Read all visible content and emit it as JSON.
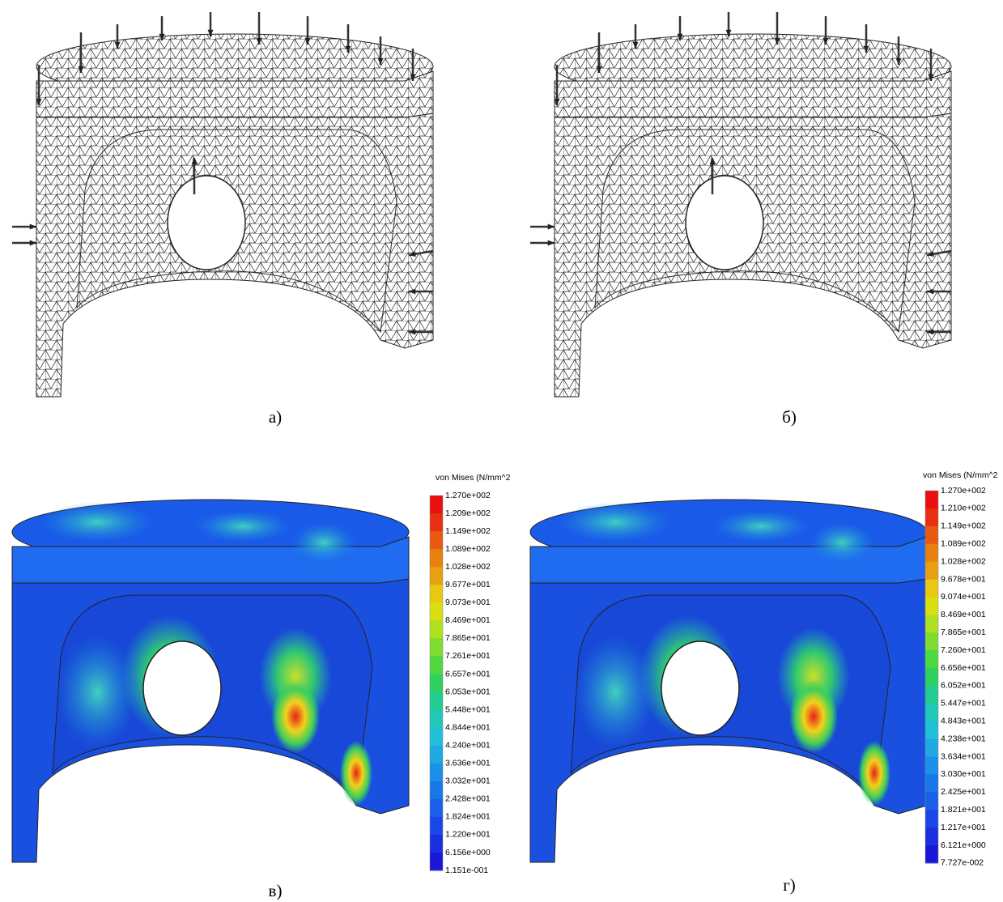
{
  "panels": [
    {
      "caption": "а)"
    },
    {
      "caption": "б)"
    },
    {
      "caption": "в)",
      "legend": {
        "title": "von Mises (N/mm^2",
        "labels": [
          "1.270e+002",
          "1.209e+002",
          "1.149e+002",
          "1.089e+002",
          "1.028e+002",
          "9.677e+001",
          "9.073e+001",
          "8.469e+001",
          "7.865e+001",
          "7.261e+001",
          "6.657e+001",
          "6.053e+001",
          "5.448e+001",
          "4.844e+001",
          "4.240e+001",
          "3.636e+001",
          "3.032e+001",
          "2.428e+001",
          "1.824e+001",
          "1.220e+001",
          "6.156e+000",
          "1.151e-001"
        ]
      }
    },
    {
      "caption": "г)",
      "legend": {
        "title": "von Mises (N/mm^2",
        "labels": [
          "1.270e+002",
          "1.210e+002",
          "1.149e+002",
          "1.089e+002",
          "1.028e+002",
          "9.678e+001",
          "9.074e+001",
          "8.469e+001",
          "7.865e+001",
          "7.260e+001",
          "6.656e+001",
          "6.052e+001",
          "5.447e+001",
          "4.843e+001",
          "4.238e+001",
          "3.634e+001",
          "3.030e+001",
          "2.425e+001",
          "1.821e+001",
          "1.217e+001",
          "6.121e+000",
          "7.727e-002"
        ]
      }
    }
  ]
}
